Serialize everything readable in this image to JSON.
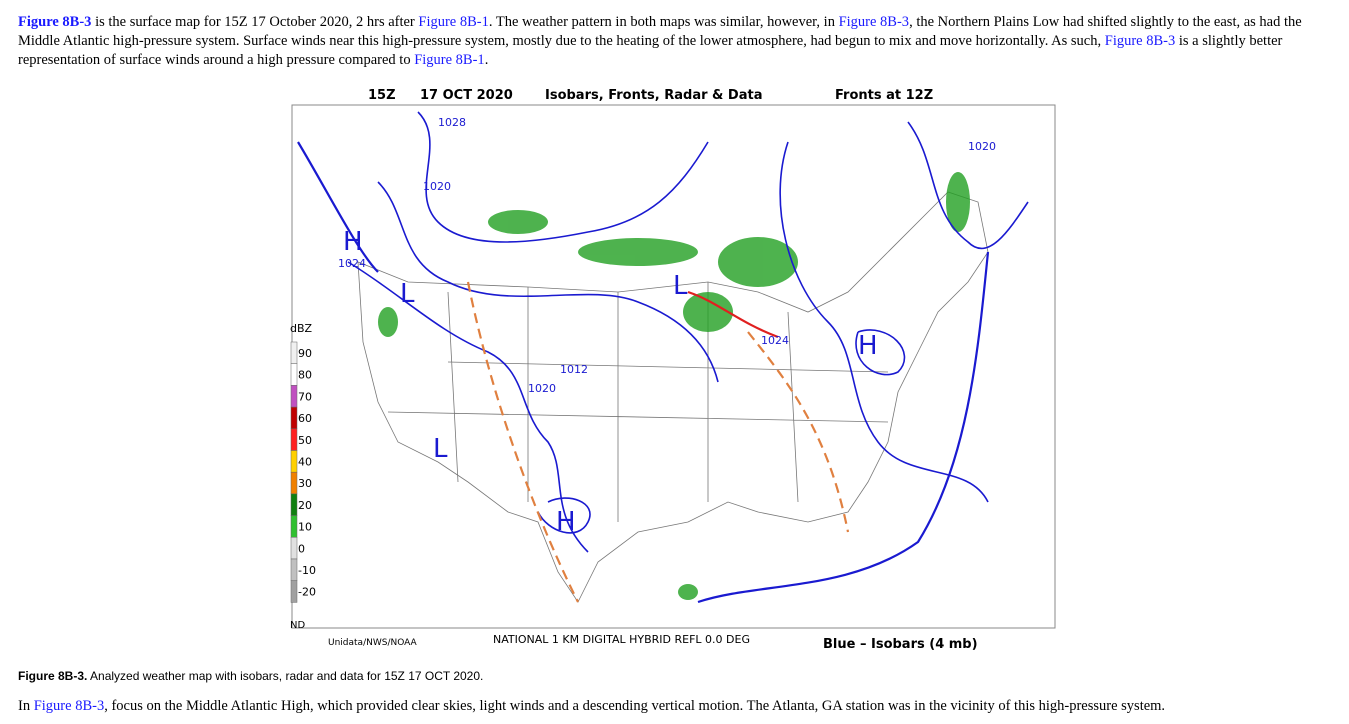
{
  "intro": [
    "Figure 8B-3",
    " is the surface map for 15Z 17 October 2020, 2 hrs after ",
    "Figure 8B-1",
    ". The weather pattern in both maps was similar, however, in ",
    "Figure 8B-3",
    ", the Northern Plains Low had shifted slightly to the east, as had the Middle Atlantic high-pressure system. Surface winds near this high-pressure system, mostly due to the heating of the lower atmosphere, had begun to mix and move horizontally. As such, ",
    "Figure 8B-3",
    " is a slightly better representation of surface winds around a high pressure compared to ",
    "Figure 8B-1",
    "."
  ],
  "map": {
    "header": [
      "15Z",
      "17 OCT 2020",
      "Isobars, Fronts, Radar & Data",
      "Fronts at 12Z"
    ],
    "legend_title": "dBZ",
    "legend": [
      {
        "label": "90",
        "color": "#f0f0f0"
      },
      {
        "label": "80",
        "color": "#ffffff"
      },
      {
        "label": "70",
        "color": "#c050c0"
      },
      {
        "label": "60",
        "color": "#c00000"
      },
      {
        "label": "50",
        "color": "#ff2020"
      },
      {
        "label": "40",
        "color": "#ffd000"
      },
      {
        "label": "30",
        "color": "#f08000"
      },
      {
        "label": "20",
        "color": "#108010"
      },
      {
        "label": "10",
        "color": "#30c030"
      },
      {
        "label": "0",
        "color": "#e0e0e0"
      },
      {
        "label": "-10",
        "color": "#c0c0c0"
      },
      {
        "label": "-20",
        "color": "#a0a0a0"
      }
    ],
    "legend_nd": "ND",
    "labels": [
      "H",
      "H",
      "H",
      "L",
      "L",
      "L",
      "1028",
      "1024",
      "1020",
      "1020",
      "1012",
      "1024",
      "1020"
    ],
    "footer": [
      "Unidata/NWS/NOAA",
      "NATIONAL 1 KM DIGITAL HYBRID REFL 0.0 DEG",
      "Blue – Isobars (4 mb)"
    ]
  },
  "caption": {
    "label": "Figure 8B-3.",
    "text": " Analyzed weather map with isobars, radar and data for 15Z 17 OCT 2020."
  },
  "outro": [
    "In ",
    "Figure 8B-3",
    ", focus on the Middle Atlantic High, which provided clear skies, light winds and a descending vertical motion. The Atlanta, GA station was in the vicinity of this high-pressure system."
  ]
}
